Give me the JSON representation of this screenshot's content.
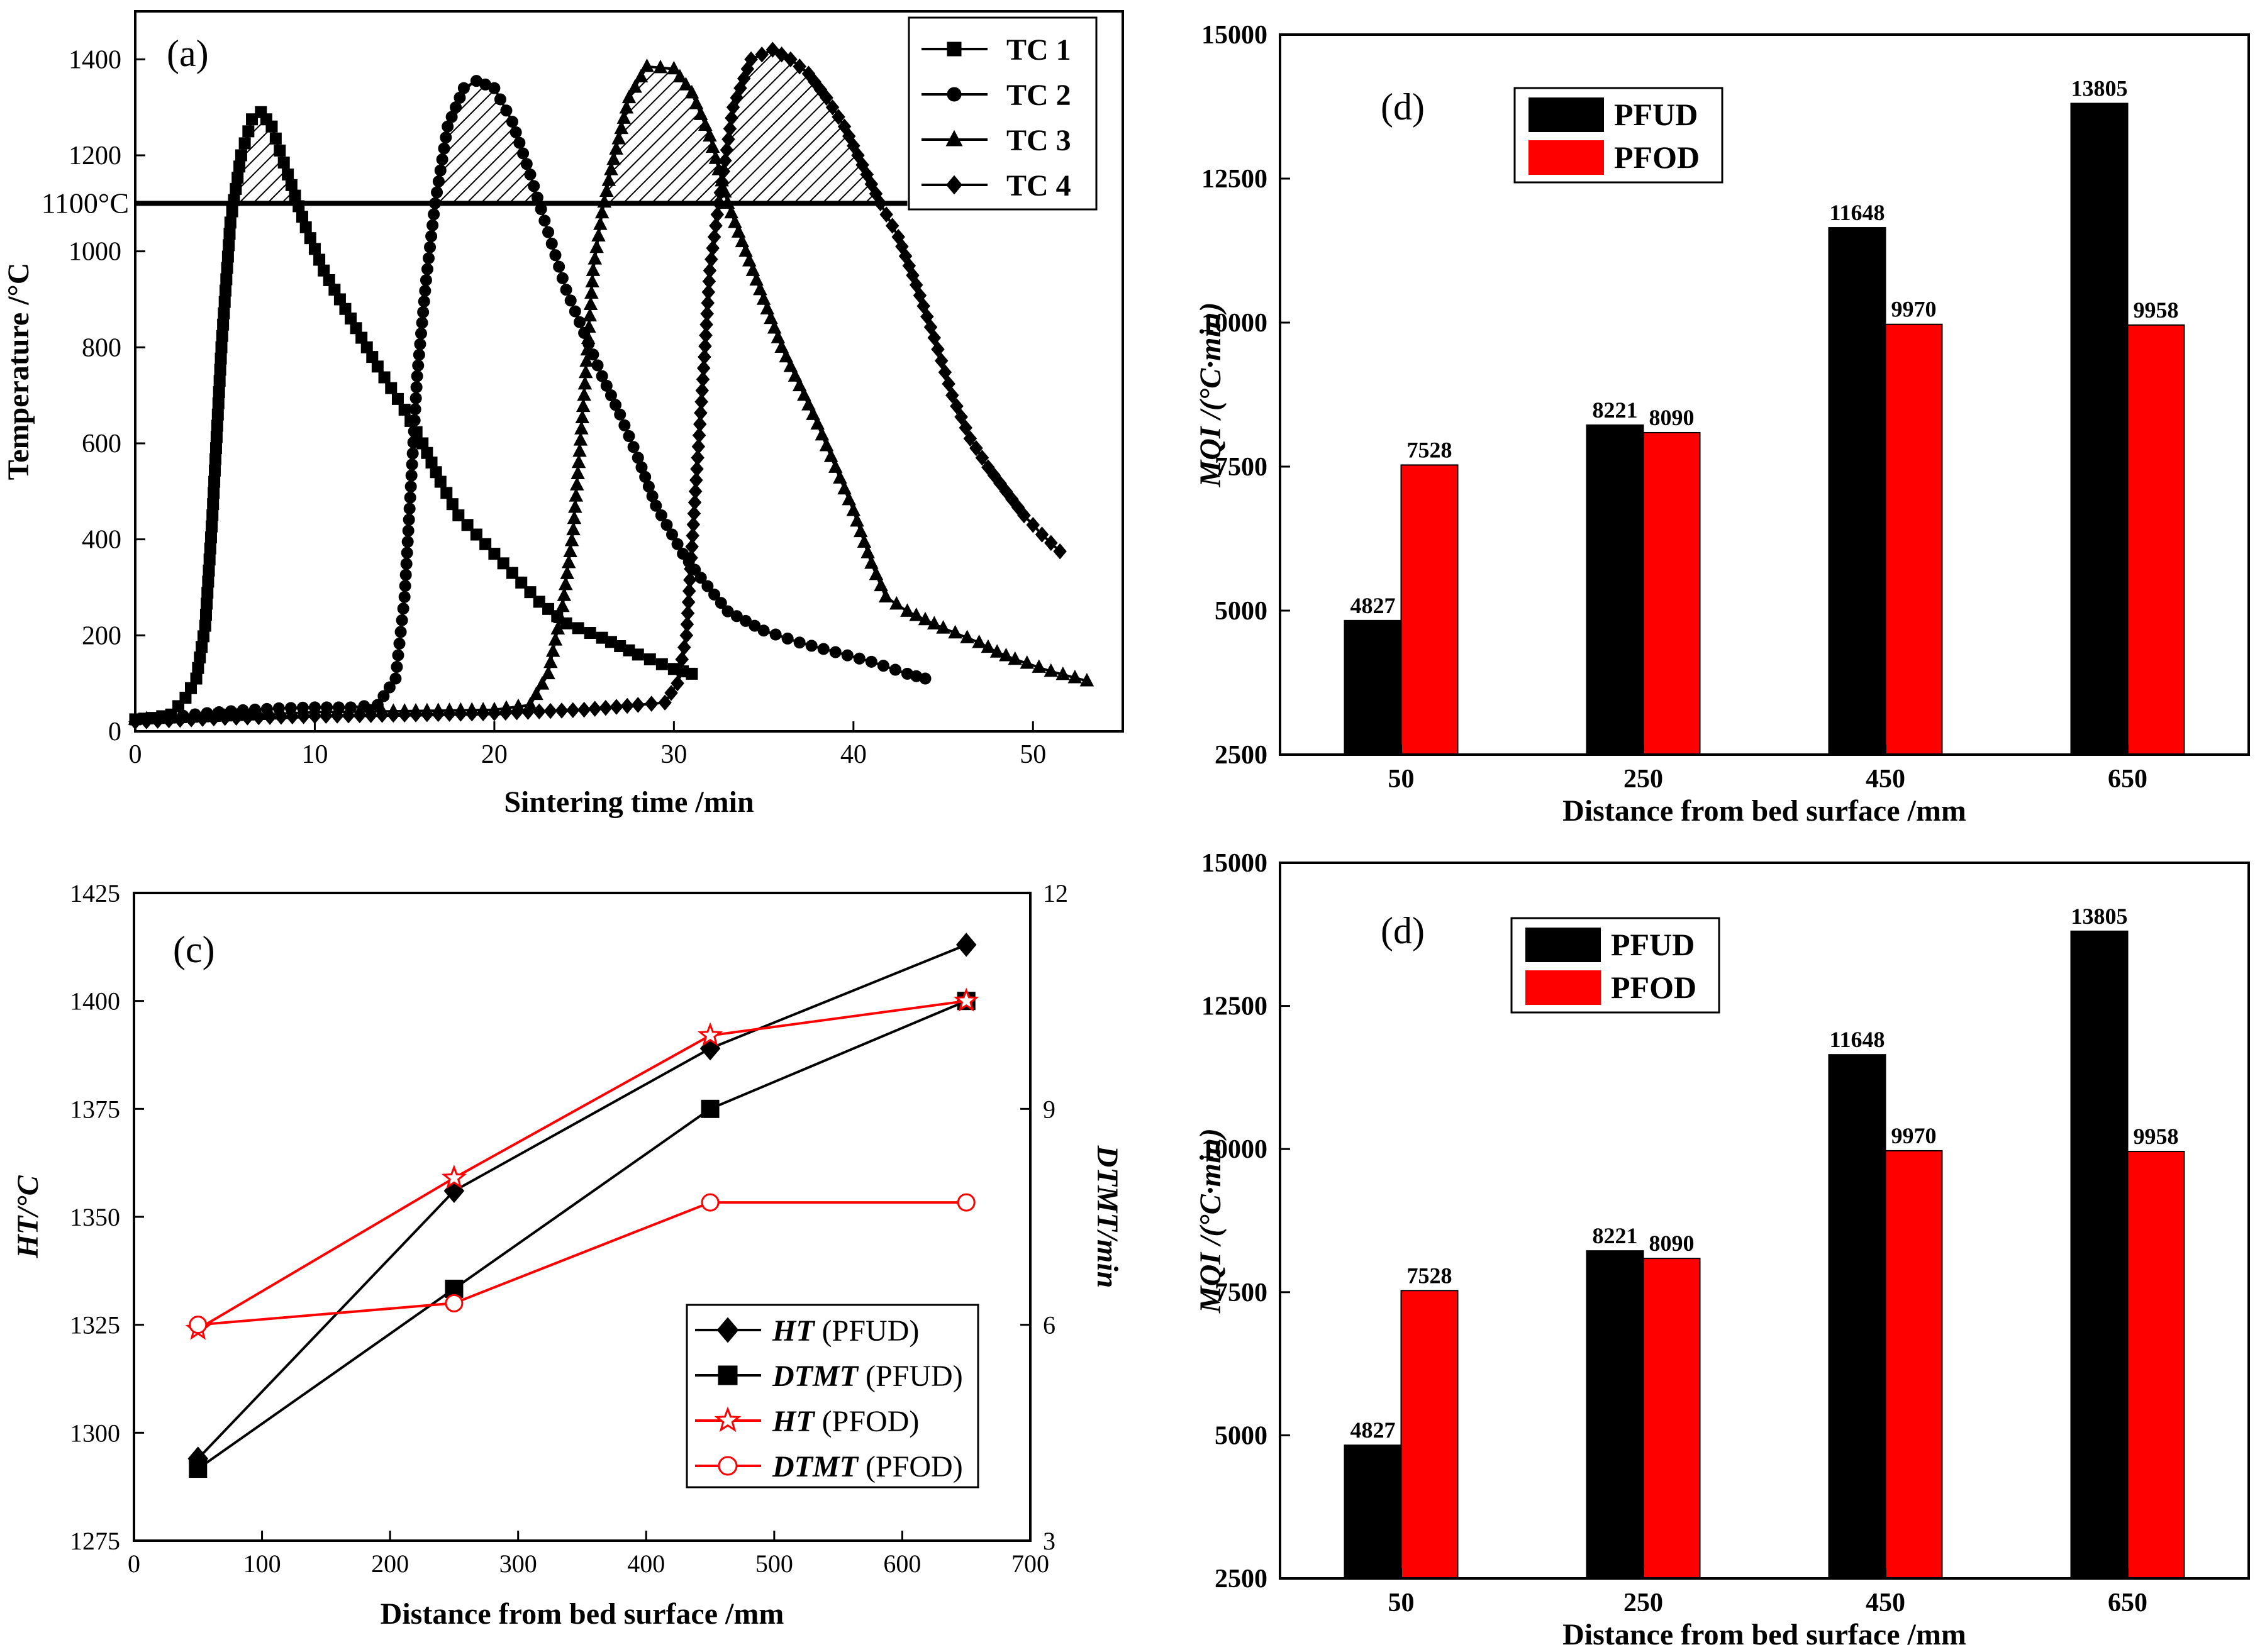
{
  "colors": {
    "black": "#000000",
    "red": "#ff0000",
    "white": "#ffffff"
  },
  "chart_data": [
    {
      "id": "a",
      "type": "line",
      "panel_label": "(a)",
      "xlabel": "Sintering time /min",
      "ylabel": "Temperature /°C",
      "xlim": [
        0,
        55
      ],
      "ylim": [
        0,
        1500
      ],
      "xticks": [
        0,
        10,
        20,
        30,
        40,
        50
      ],
      "yticks": [
        0,
        200,
        400,
        600,
        800,
        1000,
        1200,
        1400
      ],
      "threshold": {
        "value": 1100,
        "label": "1100°C",
        "x_end": 43
      },
      "legend": [
        "TC 1",
        "TC 2",
        "TC 3",
        "TC 4"
      ],
      "series": [
        {
          "name": "TC 1",
          "marker": "square",
          "points": [
            [
              0,
              25
            ],
            [
              1,
              28
            ],
            [
              2,
              35
            ],
            [
              2.8,
              70
            ],
            [
              3.4,
              110
            ],
            [
              3.9,
              220
            ],
            [
              4.3,
              450
            ],
            [
              4.8,
              800
            ],
            [
              5.3,
              1060
            ],
            [
              5.9,
              1200
            ],
            [
              6.5,
              1275
            ],
            [
              7,
              1290
            ],
            [
              7.6,
              1260
            ],
            [
              8.5,
              1160
            ],
            [
              9.5,
              1050
            ],
            [
              10.5,
              960
            ],
            [
              12,
              860
            ],
            [
              13.5,
              760
            ],
            [
              15,
              670
            ],
            [
              16,
              600
            ],
            [
              17,
              520
            ],
            [
              18,
              450
            ],
            [
              19.5,
              390
            ],
            [
              21,
              330
            ],
            [
              22.5,
              270
            ],
            [
              24,
              225
            ],
            [
              26,
              195
            ],
            [
              28,
              160
            ],
            [
              30,
              130
            ],
            [
              31,
              120
            ]
          ]
        },
        {
          "name": "TC 2",
          "marker": "circle",
          "points": [
            [
              0,
              25
            ],
            [
              2,
              30
            ],
            [
              4,
              38
            ],
            [
              6,
              44
            ],
            [
              8,
              48
            ],
            [
              10,
              50
            ],
            [
              12,
              50
            ],
            [
              13.5,
              55
            ],
            [
              14.5,
              110
            ],
            [
              15,
              280
            ],
            [
              15.7,
              740
            ],
            [
              16.2,
              940
            ],
            [
              16.7,
              1100
            ],
            [
              17.4,
              1260
            ],
            [
              18.3,
              1340
            ],
            [
              19,
              1355
            ],
            [
              20,
              1340
            ],
            [
              21,
              1270
            ],
            [
              22,
              1160
            ],
            [
              23,
              1040
            ],
            [
              24,
              920
            ],
            [
              25,
              830
            ],
            [
              26,
              740
            ],
            [
              27,
              660
            ],
            [
              28,
              570
            ],
            [
              29,
              470
            ],
            [
              30.5,
              370
            ],
            [
              31.5,
              320
            ],
            [
              33,
              250
            ],
            [
              35,
              210
            ],
            [
              37,
              185
            ],
            [
              39,
              165
            ],
            [
              41,
              145
            ],
            [
              43,
              120
            ],
            [
              44,
              110
            ]
          ]
        },
        {
          "name": "TC 3",
          "marker": "triangle",
          "points": [
            [
              0,
              25
            ],
            [
              5,
              32
            ],
            [
              10,
              40
            ],
            [
              15,
              42
            ],
            [
              20,
              45
            ],
            [
              22,
              55
            ],
            [
              23,
              120
            ],
            [
              23.8,
              260
            ],
            [
              24.4,
              420
            ],
            [
              25,
              700
            ],
            [
              25.5,
              960
            ],
            [
              26,
              1080
            ],
            [
              26.5,
              1170
            ],
            [
              27.5,
              1320
            ],
            [
              28.5,
              1385
            ],
            [
              30,
              1380
            ],
            [
              31,
              1330
            ],
            [
              32,
              1240
            ],
            [
              33,
              1100
            ],
            [
              34,
              1000
            ],
            [
              35,
              900
            ],
            [
              36,
              800
            ],
            [
              37,
              720
            ],
            [
              38,
              640
            ],
            [
              39,
              550
            ],
            [
              40,
              460
            ],
            [
              41,
              350
            ],
            [
              41.8,
              280
            ],
            [
              43,
              250
            ],
            [
              45,
              215
            ],
            [
              47,
              185
            ],
            [
              48,
              165
            ],
            [
              49,
              150
            ],
            [
              51,
              125
            ],
            [
              53,
              105
            ]
          ]
        },
        {
          "name": "TC 4",
          "marker": "diamond",
          "points": [
            [
              0,
              20
            ],
            [
              5,
              28
            ],
            [
              10,
              32
            ],
            [
              15,
              35
            ],
            [
              20,
              38
            ],
            [
              25,
              45
            ],
            [
              28,
              55
            ],
            [
              29.5,
              60
            ],
            [
              30.2,
              100
            ],
            [
              30.7,
              200
            ],
            [
              31.2,
              500
            ],
            [
              31.7,
              780
            ],
            [
              32,
              960
            ],
            [
              32.5,
              1100
            ],
            [
              33.3,
              1300
            ],
            [
              34.3,
              1400
            ],
            [
              35.5,
              1420
            ],
            [
              36.5,
              1400
            ],
            [
              37.5,
              1370
            ],
            [
              38.5,
              1320
            ],
            [
              39.5,
              1260
            ],
            [
              40.5,
              1180
            ],
            [
              41.5,
              1100
            ],
            [
              42.5,
              1030
            ],
            [
              43.5,
              930
            ],
            [
              44.5,
              820
            ],
            [
              45.5,
              700
            ],
            [
              46.5,
              610
            ],
            [
              47.5,
              550
            ],
            [
              48.5,
              500
            ],
            [
              49.5,
              450
            ],
            [
              50.5,
              410
            ],
            [
              51.5,
              375
            ]
          ]
        }
      ]
    },
    {
      "id": "c",
      "type": "line",
      "panel_label": "(c)",
      "xlabel": "Distance from bed surface /mm",
      "ylabel": "HT/°C",
      "y2label": "DTMT/min",
      "xlim": [
        0,
        700
      ],
      "ylim": [
        1275,
        1425
      ],
      "y2lim": [
        3,
        12
      ],
      "xticks": [
        0,
        100,
        200,
        300,
        400,
        500,
        600,
        700
      ],
      "yticks": [
        1275,
        1300,
        1325,
        1350,
        1375,
        1400,
        1425
      ],
      "y2ticks": [
        3,
        6,
        9,
        12
      ],
      "x": [
        50,
        250,
        450,
        650
      ],
      "series": [
        {
          "name": "HT",
          "tag": "(PFUD)",
          "axis": "left",
          "color": "#000000",
          "marker": "diamond",
          "filled": true,
          "values": [
            1294,
            1356,
            1389,
            1413
          ]
        },
        {
          "name": "DTMT",
          "tag": "(PFUD)",
          "axis": "right",
          "color": "#000000",
          "marker": "square",
          "filled": true,
          "values": [
            4.0,
            6.5,
            9.0,
            10.5
          ]
        },
        {
          "name": "HT",
          "tag": "(PFOD)",
          "axis": "left",
          "color": "#ff0000",
          "marker": "star",
          "filled": false,
          "values": [
            1324,
            1359,
            1392,
            1400
          ]
        },
        {
          "name": "DTMT",
          "tag": "(PFOD)",
          "axis": "right",
          "color": "#ff0000",
          "marker": "circle",
          "filled": false,
          "values": [
            6.0,
            6.3,
            7.7,
            7.7
          ]
        }
      ]
    },
    {
      "id": "d-top",
      "type": "bar",
      "panel_label": "(d)",
      "xlabel": "Distance from bed surface /mm",
      "ylabel": "MQI /(°C·min)",
      "ylim": [
        2500,
        15000
      ],
      "yticks": [
        2500,
        5000,
        7500,
        10000,
        12500,
        15000
      ],
      "categories": [
        "50",
        "250",
        "450",
        "650"
      ],
      "series": [
        {
          "name": "PFUD",
          "color": "#000000",
          "values": [
            4827,
            8221,
            11648,
            13805
          ],
          "labels": [
            "4827",
            "8221",
            "11648",
            "13805"
          ]
        },
        {
          "name": "PFOD",
          "color": "#ff0000",
          "values": [
            7528,
            8090,
            9970,
            9958
          ],
          "labels": [
            "7528",
            "8090",
            "9970",
            "9958"
          ]
        }
      ]
    },
    {
      "id": "d-bottom",
      "type": "bar",
      "panel_label": "(d)",
      "xlabel": "Distance from bed surface /mm",
      "ylabel": "MQI /(°C·min)",
      "ylim": [
        2500,
        15000
      ],
      "yticks": [
        2500,
        5000,
        7500,
        10000,
        12500,
        15000
      ],
      "categories": [
        "50",
        "250",
        "450",
        "650"
      ],
      "series": [
        {
          "name": "PFUD",
          "color": "#000000",
          "values": [
            4827,
            8221,
            11648,
            13805
          ],
          "labels": [
            "4827",
            "8221",
            "11648",
            "13805"
          ]
        },
        {
          "name": "PFOD",
          "color": "#ff0000",
          "values": [
            7528,
            8090,
            9970,
            9958
          ],
          "labels": [
            "7528",
            "8090",
            "9970",
            "9958"
          ]
        }
      ]
    }
  ]
}
